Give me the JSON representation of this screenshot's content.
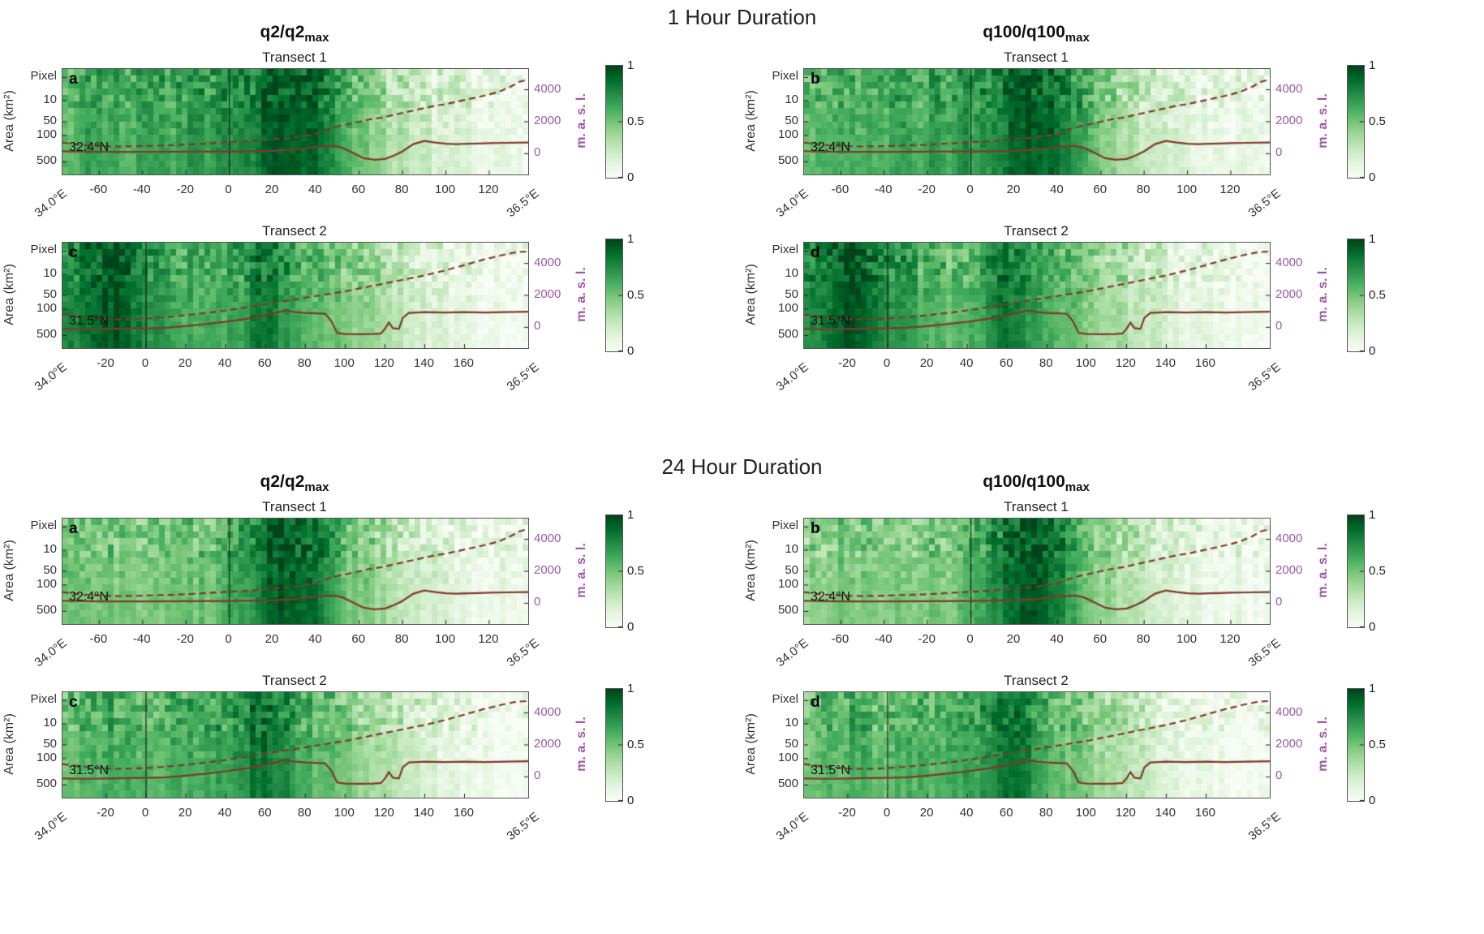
{
  "figure": {
    "groups": [
      {
        "title": "1 Hour Duration",
        "columns": [
          {
            "main": "q2/q2",
            "sub": "max"
          },
          {
            "main": "q100/q100",
            "sub": "max"
          }
        ]
      },
      {
        "title": "24 Hour Duration",
        "columns": [
          {
            "main": "q2/q2",
            "sub": "max"
          },
          {
            "main": "q100/q100",
            "sub": "max"
          }
        ]
      }
    ]
  },
  "axes": {
    "y_label": "Area (km²)",
    "y_ticks": [
      {
        "label": "Pixel",
        "pos": 0.08
      },
      {
        "label": "10",
        "pos": 0.3
      },
      {
        "label": "50",
        "pos": 0.5
      },
      {
        "label": "100",
        "pos": 0.63
      },
      {
        "label": "500",
        "pos": 0.88
      }
    ],
    "right_label": "m. a. s. l.",
    "right_ticks": [
      {
        "label": "4000",
        "value": 4000
      },
      {
        "label": "2000",
        "value": 2000
      },
      {
        "label": "0",
        "value": 0
      }
    ],
    "x_start_label": "34.0°E",
    "x_end_label": "36.5°E"
  },
  "colorbar": {
    "ticks": [
      {
        "label": "1",
        "pos": 0.0
      },
      {
        "label": "0.5",
        "pos": 0.5
      },
      {
        "label": "0",
        "pos": 1.0
      }
    ]
  },
  "colors": {
    "right_axis_purple": "#9e57a5",
    "line_brown": "#81392a",
    "frame": "#555555",
    "colormap_dark": "#00441b",
    "colormap_light": "#f7fcf5"
  },
  "chart_data": {
    "type": "heatmap",
    "value_range": [
      0,
      1
    ],
    "colormap": "Greens",
    "masl_range": [
      -1300,
      5300
    ],
    "panels": [
      {
        "id": "1h-q2-t1",
        "group": 0,
        "col": 0,
        "letter": "a",
        "title": "Transect 1",
        "lat_label": "32.4°N",
        "transect": "t1",
        "x_range": [
          -77,
          138
        ],
        "x_ticks": [
          -60,
          -40,
          -20,
          0,
          20,
          40,
          60,
          80,
          100,
          120
        ],
        "values": [
          0.55,
          0.62,
          0.68,
          0.66,
          0.63,
          0.6,
          0.62,
          0.66,
          0.7,
          0.63,
          0.66,
          0.72,
          0.66,
          0.78,
          0.72,
          0.76,
          0.8,
          0.86,
          0.9,
          0.93,
          0.92,
          0.88,
          0.8,
          0.7,
          0.58,
          0.5,
          0.44,
          0.38,
          0.32,
          0.28,
          0.25,
          0.21,
          0.18,
          0.15,
          0.12,
          0.1,
          0.08,
          0.13,
          0.07,
          0.05
        ]
      },
      {
        "id": "1h-q100-t1",
        "group": 0,
        "col": 1,
        "letter": "b",
        "title": "Transect 1",
        "lat_label": "32.4°N",
        "transect": "t1",
        "x_range": [
          -77,
          138
        ],
        "x_ticks": [
          -60,
          -40,
          -20,
          0,
          20,
          40,
          60,
          80,
          100,
          120
        ],
        "values": [
          0.5,
          0.58,
          0.65,
          0.64,
          0.6,
          0.57,
          0.59,
          0.63,
          0.68,
          0.6,
          0.63,
          0.7,
          0.63,
          0.75,
          0.69,
          0.73,
          0.78,
          0.85,
          0.9,
          0.92,
          0.9,
          0.86,
          0.78,
          0.68,
          0.55,
          0.47,
          0.41,
          0.35,
          0.29,
          0.25,
          0.22,
          0.18,
          0.15,
          0.12,
          0.1,
          0.08,
          0.06,
          0.11,
          0.05,
          0.04
        ]
      },
      {
        "id": "1h-q2-t2",
        "group": 0,
        "col": 0,
        "letter": "c",
        "title": "Transect 2",
        "lat_label": "31.5°N",
        "transect": "t2",
        "x_range": [
          -42,
          192
        ],
        "x_ticks": [
          -20,
          0,
          20,
          40,
          60,
          80,
          100,
          120,
          140,
          160
        ],
        "values": [
          0.78,
          0.8,
          0.86,
          0.92,
          0.95,
          0.9,
          0.8,
          0.75,
          0.72,
          0.68,
          0.62,
          0.6,
          0.58,
          0.6,
          0.63,
          0.66,
          0.8,
          0.86,
          0.78,
          0.68,
          0.62,
          0.58,
          0.55,
          0.5,
          0.46,
          0.42,
          0.38,
          0.34,
          0.3,
          0.26,
          0.22,
          0.18,
          0.15,
          0.12,
          0.09,
          0.07,
          0.05,
          0.04,
          0.03,
          0.02
        ]
      },
      {
        "id": "1h-q100-t2",
        "group": 0,
        "col": 1,
        "letter": "d",
        "title": "Transect 2",
        "lat_label": "31.5°N",
        "transect": "t2",
        "x_range": [
          -42,
          192
        ],
        "x_ticks": [
          -20,
          0,
          20,
          40,
          60,
          80,
          100,
          120,
          140,
          160
        ],
        "values": [
          0.75,
          0.78,
          0.85,
          0.92,
          0.95,
          0.88,
          0.78,
          0.72,
          0.7,
          0.65,
          0.6,
          0.58,
          0.56,
          0.58,
          0.61,
          0.64,
          0.79,
          0.86,
          0.8,
          0.7,
          0.63,
          0.58,
          0.54,
          0.48,
          0.44,
          0.4,
          0.36,
          0.32,
          0.28,
          0.24,
          0.2,
          0.16,
          0.13,
          0.1,
          0.08,
          0.06,
          0.04,
          0.03,
          0.02,
          0.02
        ]
      },
      {
        "id": "24h-q2-t1",
        "group": 1,
        "col": 0,
        "letter": "a",
        "title": "Transect 1",
        "lat_label": "32.4°N",
        "transect": "t1",
        "x_range": [
          -77,
          138
        ],
        "x_ticks": [
          -60,
          -40,
          -20,
          0,
          20,
          40,
          60,
          80,
          100,
          120
        ],
        "values": [
          0.45,
          0.48,
          0.5,
          0.5,
          0.48,
          0.47,
          0.46,
          0.48,
          0.5,
          0.48,
          0.49,
          0.52,
          0.5,
          0.55,
          0.6,
          0.66,
          0.76,
          0.86,
          0.93,
          0.95,
          0.92,
          0.85,
          0.74,
          0.63,
          0.53,
          0.47,
          0.42,
          0.36,
          0.31,
          0.27,
          0.23,
          0.19,
          0.16,
          0.13,
          0.1,
          0.08,
          0.06,
          0.11,
          0.05,
          0.04
        ]
      },
      {
        "id": "24h-q100-t1",
        "group": 1,
        "col": 1,
        "letter": "b",
        "title": "Transect 1",
        "lat_label": "32.4°N",
        "transect": "t1",
        "x_range": [
          -77,
          138
        ],
        "x_ticks": [
          -60,
          -40,
          -20,
          0,
          20,
          40,
          60,
          80,
          100,
          120
        ],
        "values": [
          0.42,
          0.46,
          0.48,
          0.49,
          0.47,
          0.45,
          0.44,
          0.46,
          0.48,
          0.46,
          0.47,
          0.5,
          0.48,
          0.53,
          0.58,
          0.64,
          0.74,
          0.85,
          0.93,
          0.95,
          0.9,
          0.82,
          0.71,
          0.6,
          0.5,
          0.44,
          0.39,
          0.33,
          0.28,
          0.24,
          0.2,
          0.17,
          0.14,
          0.11,
          0.09,
          0.07,
          0.05,
          0.09,
          0.04,
          0.03
        ]
      },
      {
        "id": "24h-q2-t2",
        "group": 1,
        "col": 0,
        "letter": "c",
        "title": "Transect 2",
        "lat_label": "31.5°N",
        "transect": "t2",
        "x_range": [
          -42,
          192
        ],
        "x_ticks": [
          -20,
          0,
          20,
          40,
          60,
          80,
          100,
          120,
          140,
          160
        ],
        "values": [
          0.55,
          0.56,
          0.58,
          0.6,
          0.62,
          0.6,
          0.58,
          0.57,
          0.58,
          0.6,
          0.62,
          0.64,
          0.62,
          0.65,
          0.68,
          0.71,
          0.82,
          0.88,
          0.8,
          0.7,
          0.63,
          0.58,
          0.54,
          0.5,
          0.45,
          0.4,
          0.36,
          0.32,
          0.28,
          0.24,
          0.2,
          0.16,
          0.13,
          0.1,
          0.08,
          0.06,
          0.05,
          0.04,
          0.03,
          0.02
        ]
      },
      {
        "id": "24h-q100-t2",
        "group": 1,
        "col": 1,
        "letter": "d",
        "title": "Transect 2",
        "lat_label": "31.5°N",
        "transect": "t2",
        "x_range": [
          -42,
          192
        ],
        "x_ticks": [
          -20,
          0,
          20,
          40,
          60,
          80,
          100,
          120,
          140,
          160
        ],
        "values": [
          0.52,
          0.54,
          0.56,
          0.58,
          0.6,
          0.58,
          0.56,
          0.55,
          0.57,
          0.59,
          0.6,
          0.62,
          0.6,
          0.63,
          0.66,
          0.69,
          0.8,
          0.88,
          0.82,
          0.72,
          0.64,
          0.58,
          0.53,
          0.48,
          0.43,
          0.38,
          0.34,
          0.3,
          0.26,
          0.22,
          0.18,
          0.15,
          0.12,
          0.09,
          0.07,
          0.05,
          0.04,
          0.03,
          0.02,
          0.02
        ]
      }
    ],
    "profiles": {
      "t1": {
        "solid": [
          [
            -77,
            150
          ],
          [
            -60,
            120
          ],
          [
            -40,
            120
          ],
          [
            -20,
            130
          ],
          [
            0,
            140
          ],
          [
            10,
            150
          ],
          [
            20,
            180
          ],
          [
            30,
            250
          ],
          [
            40,
            420
          ],
          [
            48,
            480
          ],
          [
            52,
            380
          ],
          [
            57,
            60
          ],
          [
            62,
            -280
          ],
          [
            67,
            -380
          ],
          [
            72,
            -330
          ],
          [
            76,
            -120
          ],
          [
            80,
            150
          ],
          [
            85,
            600
          ],
          [
            90,
            800
          ],
          [
            95,
            700
          ],
          [
            100,
            620
          ],
          [
            105,
            600
          ],
          [
            110,
            620
          ],
          [
            115,
            640
          ],
          [
            120,
            660
          ],
          [
            128,
            680
          ],
          [
            138,
            700
          ]
        ],
        "dashed": [
          [
            -77,
            700
          ],
          [
            -70,
            560
          ],
          [
            -60,
            480
          ],
          [
            -50,
            450
          ],
          [
            -40,
            470
          ],
          [
            -30,
            520
          ],
          [
            -20,
            560
          ],
          [
            -10,
            640
          ],
          [
            0,
            720
          ],
          [
            5,
            760
          ],
          [
            10,
            800
          ],
          [
            20,
            900
          ],
          [
            30,
            1020
          ],
          [
            40,
            1250
          ],
          [
            45,
            1500
          ],
          [
            50,
            1700
          ],
          [
            55,
            1850
          ],
          [
            60,
            2000
          ],
          [
            65,
            2150
          ],
          [
            70,
            2250
          ],
          [
            75,
            2400
          ],
          [
            80,
            2550
          ],
          [
            85,
            2700
          ],
          [
            90,
            2850
          ],
          [
            95,
            3000
          ],
          [
            100,
            3100
          ],
          [
            105,
            3250
          ],
          [
            110,
            3400
          ],
          [
            115,
            3550
          ],
          [
            120,
            3700
          ],
          [
            125,
            3900
          ],
          [
            130,
            4200
          ],
          [
            134,
            4500
          ],
          [
            138,
            4650
          ]
        ]
      },
      "t2": {
        "solid": [
          [
            -42,
            -100
          ],
          [
            -30,
            -120
          ],
          [
            -20,
            -100
          ],
          [
            -10,
            -80
          ],
          [
            0,
            -60
          ],
          [
            10,
            -20
          ],
          [
            20,
            80
          ],
          [
            30,
            200
          ],
          [
            40,
            350
          ],
          [
            50,
            520
          ],
          [
            60,
            750
          ],
          [
            65,
            900
          ],
          [
            70,
            1050
          ],
          [
            75,
            950
          ],
          [
            80,
            900
          ],
          [
            85,
            880
          ],
          [
            90,
            850
          ],
          [
            93,
            400
          ],
          [
            96,
            -350
          ],
          [
            100,
            -420
          ],
          [
            108,
            -430
          ],
          [
            114,
            -420
          ],
          [
            118,
            -380
          ],
          [
            120,
            -100
          ],
          [
            122,
            300
          ],
          [
            124,
            -50
          ],
          [
            127,
            -100
          ],
          [
            129,
            600
          ],
          [
            132,
            900
          ],
          [
            140,
            950
          ],
          [
            150,
            930
          ],
          [
            160,
            950
          ],
          [
            170,
            930
          ],
          [
            180,
            950
          ],
          [
            192,
            980
          ]
        ],
        "dashed": [
          [
            -42,
            800
          ],
          [
            -35,
            700
          ],
          [
            -25,
            560
          ],
          [
            -15,
            500
          ],
          [
            -5,
            520
          ],
          [
            0,
            560
          ],
          [
            10,
            640
          ],
          [
            20,
            760
          ],
          [
            30,
            900
          ],
          [
            40,
            1060
          ],
          [
            50,
            1250
          ],
          [
            60,
            1450
          ],
          [
            70,
            1650
          ],
          [
            80,
            1850
          ],
          [
            90,
            2050
          ],
          [
            100,
            2250
          ],
          [
            110,
            2500
          ],
          [
            120,
            2750
          ],
          [
            130,
            3000
          ],
          [
            140,
            3250
          ],
          [
            150,
            3550
          ],
          [
            160,
            3900
          ],
          [
            170,
            4250
          ],
          [
            180,
            4550
          ],
          [
            186,
            4700
          ],
          [
            192,
            4750
          ]
        ]
      }
    }
  }
}
